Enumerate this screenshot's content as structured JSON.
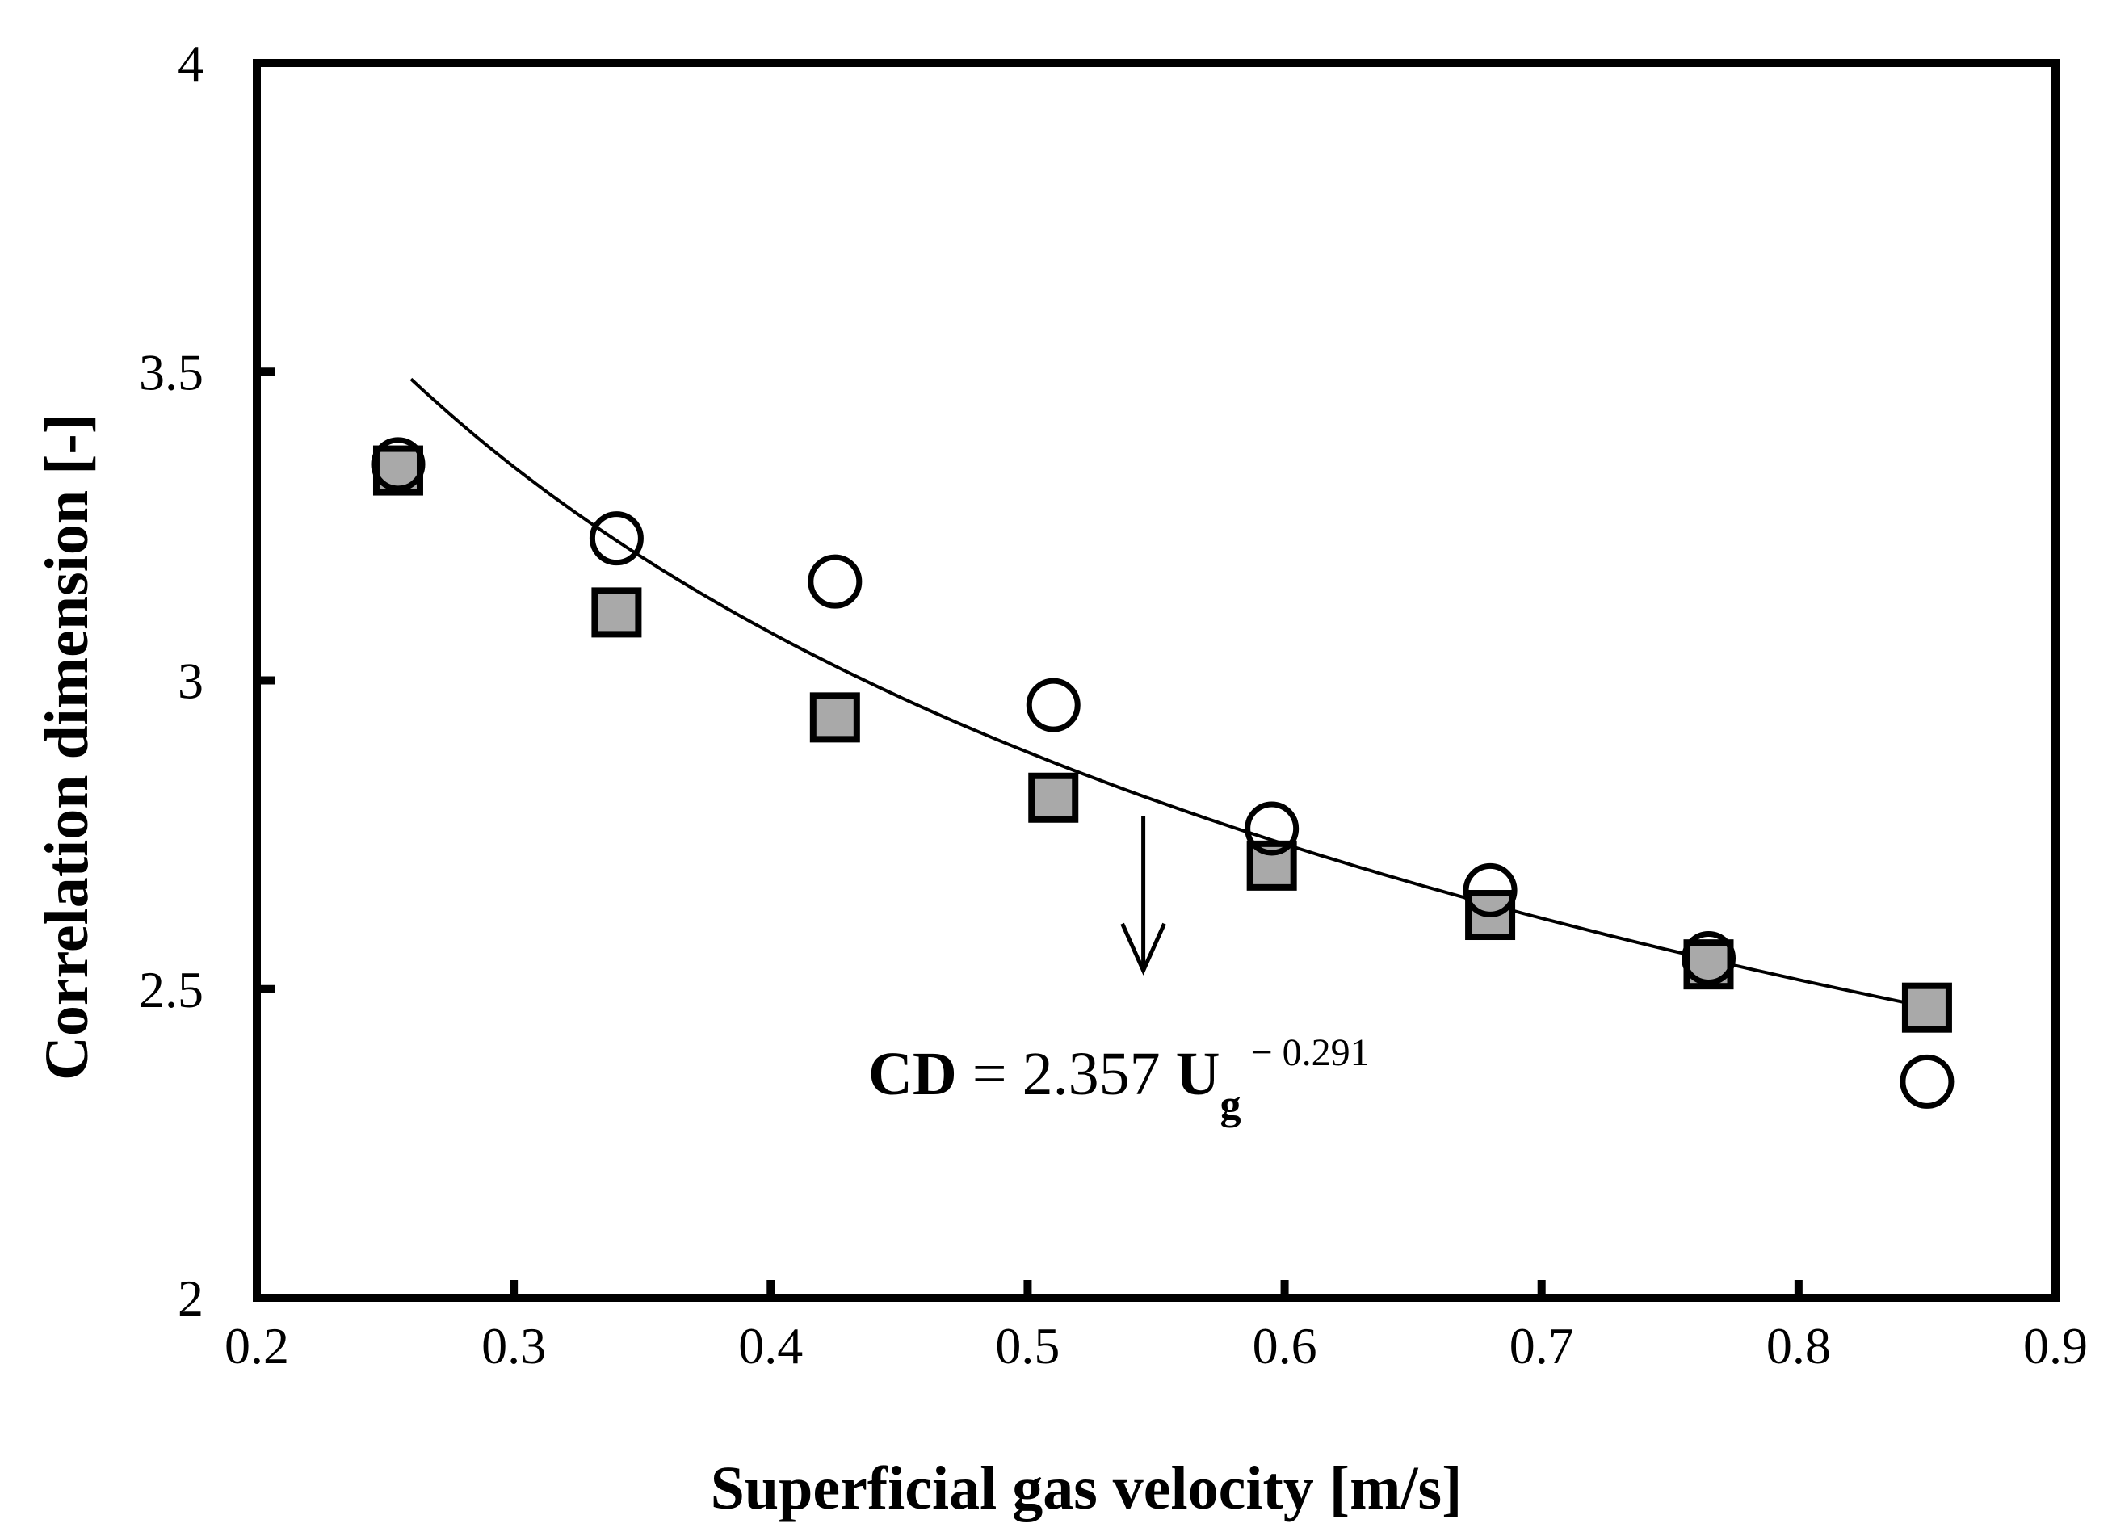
{
  "chart_data": {
    "type": "scatter",
    "xlabel": "Superficial gas velocity [m/s]",
    "ylabel": "Correlation dimension [-]",
    "xlim": [
      0.2,
      0.9
    ],
    "ylim": [
      2.0,
      4.0
    ],
    "x_ticks": [
      "0.2",
      "0.3",
      "0.4",
      "0.5",
      "0.6",
      "0.7",
      "0.8",
      "0.9"
    ],
    "y_ticks": [
      "2",
      "2.5",
      "3",
      "3.5",
      "4"
    ],
    "x_tick_values": [
      0.2,
      0.3,
      0.4,
      0.5,
      0.6,
      0.7,
      0.8,
      0.9
    ],
    "y_tick_values": [
      2.0,
      2.5,
      3.0,
      3.5,
      4.0
    ],
    "grid": false,
    "series": [
      {
        "name": "squares",
        "marker": "square",
        "fill": "#a9a9a9",
        "x": [
          0.255,
          0.34,
          0.425,
          0.51,
          0.595,
          0.68,
          0.765,
          0.85
        ],
        "y": [
          3.34,
          3.11,
          2.94,
          2.81,
          2.7,
          2.62,
          2.54,
          2.47
        ]
      },
      {
        "name": "circles",
        "marker": "circle",
        "fill": "none",
        "x": [
          0.255,
          0.34,
          0.425,
          0.51,
          0.595,
          0.68,
          0.765,
          0.85
        ],
        "y": [
          3.35,
          3.23,
          3.16,
          2.96,
          2.76,
          2.66,
          2.55,
          2.35
        ]
      },
      {
        "name": "fit",
        "marker": "line",
        "equation": {
          "coefficient": 2.357,
          "exponent": -0.291
        },
        "x_range": [
          0.26,
          0.85
        ]
      }
    ],
    "annotation": {
      "cd": "CD",
      "eq_mid": " = 2.357 ",
      "u": "U",
      "sub": "g",
      "sup": " − 0.291",
      "arrow_from": {
        "x": 0.545,
        "y": 2.78
      },
      "arrow_to": {
        "x": 0.545,
        "y": 2.53
      }
    }
  }
}
